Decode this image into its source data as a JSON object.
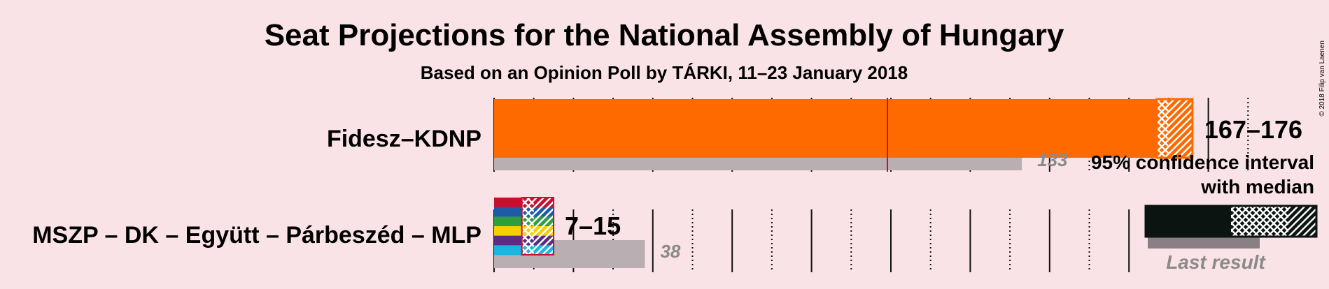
{
  "title": "Seat Projections for the National Assembly of Hungary",
  "subtitle": "Based on an Opinion Poll by TÁRKI, 11–23 January 2018",
  "copyright": "© 2018 Filip van Laenen",
  "chart_data": {
    "type": "bar",
    "orientation": "horizontal",
    "majority_seats": 100,
    "seat_scale_max": 199,
    "series": [
      {
        "name": "Fidesz–KDNP",
        "low": 167,
        "median": 170,
        "high": 176,
        "last_result": 133,
        "range_label": "167–176",
        "last_label": "133",
        "color": "#ff6a00"
      },
      {
        "name": "MSZP – DK – Együtt – Párbeszéd – MLP",
        "low": 7,
        "median": 10,
        "high": 15,
        "last_result": 38,
        "range_label": "7–15",
        "last_label": "38",
        "colors": [
          "#c8102e",
          "#1f5aa6",
          "#2e9e3e",
          "#f5d000",
          "#5a2d82",
          "#19b6e0"
        ]
      }
    ],
    "legend": {
      "line1": "95% confidence interval",
      "line2": "with median",
      "last_result": "Last result",
      "placement": "right"
    },
    "colors": {
      "last_result_bar": "#b9afb2",
      "majority_line": "#c8102e",
      "legend_bar": "#0b1410",
      "legend_last_bar": "#8a7f84"
    }
  }
}
